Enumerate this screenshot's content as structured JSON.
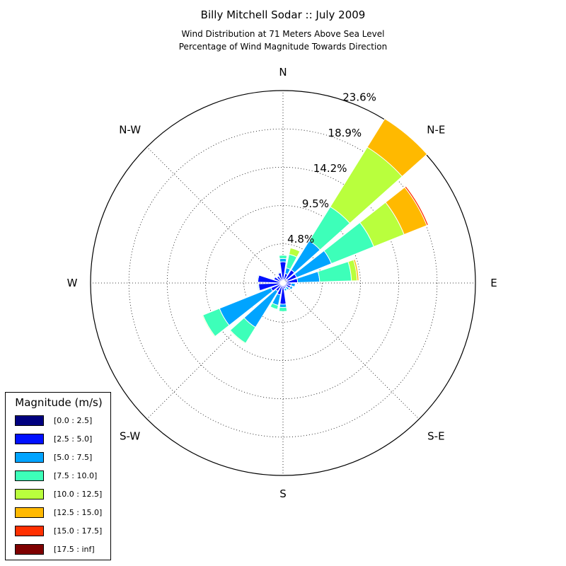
{
  "chart_data": {
    "type": "windrose",
    "title": "Billy Mitchell Sodar :: July 2009",
    "subtitle_lines": [
      "Wind Distribution at 71 Meters Above Sea Level",
      "Percentage of Wind Magnitude Towards Direction"
    ],
    "direction_labels": [
      "N",
      "N-E",
      "E",
      "S-E",
      "S",
      "S-W",
      "W",
      "N-W"
    ],
    "radial_tick_labels": [
      "4.8%",
      "9.5%",
      "14.2%",
      "18.9%",
      "23.6%"
    ],
    "radial_ticks": [
      4.8,
      9.5,
      14.2,
      18.9,
      23.6
    ],
    "radial_max": 23.6,
    "legend_title": "Magnitude (m/s)",
    "legend_placement": "lower-left",
    "bins": [
      {
        "label": "[0.0 : 2.5]",
        "color": "#00007f"
      },
      {
        "label": "[2.5 : 5.0]",
        "color": "#0010ff"
      },
      {
        "label": "[5.0 : 7.5]",
        "color": "#00a4ff"
      },
      {
        "label": "[7.5 : 10.0]",
        "color": "#3dffb9"
      },
      {
        "label": "[10.0 : 12.5]",
        "color": "#b9ff3d"
      },
      {
        "label": "[12.5 : 15.0]",
        "color": "#ffb900"
      },
      {
        "label": "[15.0 : 17.5]",
        "color": "#ff3000"
      },
      {
        "label": "[17.5 : inf]",
        "color": "#7f0000"
      }
    ],
    "sector_width_deg": 20,
    "sectors": [
      {
        "direction_deg": 0,
        "cumulative_pct": [
          0.4,
          2.6,
          3.0,
          3.4,
          3.4,
          3.4,
          3.4,
          3.4
        ]
      },
      {
        "direction_deg": 20,
        "cumulative_pct": [
          0.4,
          1.2,
          1.9,
          3.6,
          4.4,
          4.4,
          4.4,
          4.4
        ]
      },
      {
        "direction_deg": 40,
        "cumulative_pct": [
          0.6,
          1.9,
          6.1,
          11.0,
          19.6,
          23.7,
          23.7,
          23.7
        ]
      },
      {
        "direction_deg": 60,
        "cumulative_pct": [
          0.6,
          1.8,
          6.4,
          12.0,
          16.0,
          19.0,
          19.2,
          19.2
        ]
      },
      {
        "direction_deg": 80,
        "cumulative_pct": [
          0.4,
          1.8,
          4.5,
          8.4,
          9.1,
          9.3,
          9.3,
          9.3
        ]
      },
      {
        "direction_deg": 100,
        "cumulative_pct": [
          0.3,
          1.0,
          1.5,
          1.5,
          1.5,
          1.5,
          1.5,
          1.5
        ]
      },
      {
        "direction_deg": 120,
        "cumulative_pct": [
          0.3,
          1.0,
          1.3,
          1.3,
          1.3,
          1.3,
          1.3,
          1.3
        ]
      },
      {
        "direction_deg": 140,
        "cumulative_pct": [
          0.2,
          0.6,
          1.0,
          1.0,
          1.0,
          1.0,
          1.0,
          1.0
        ]
      },
      {
        "direction_deg": 160,
        "cumulative_pct": [
          0.2,
          0.7,
          1.0,
          1.0,
          1.0,
          1.0,
          1.0,
          1.0
        ]
      },
      {
        "direction_deg": 180,
        "cumulative_pct": [
          0.2,
          2.6,
          3.0,
          3.5,
          3.5,
          3.5,
          3.5,
          3.5
        ]
      },
      {
        "direction_deg": 200,
        "cumulative_pct": [
          0.2,
          1.5,
          2.8,
          3.3,
          3.3,
          3.3,
          3.3,
          3.3
        ]
      },
      {
        "direction_deg": 220,
        "cumulative_pct": [
          0.3,
          1.2,
          6.4,
          8.7,
          8.8,
          8.8,
          8.8,
          8.8
        ]
      },
      {
        "direction_deg": 240,
        "cumulative_pct": [
          0.3,
          1.6,
          8.4,
          10.6,
          10.7,
          10.7,
          10.7,
          10.7
        ]
      },
      {
        "direction_deg": 260,
        "cumulative_pct": [
          0.3,
          3.0,
          3.1,
          3.2,
          3.2,
          3.2,
          3.2,
          3.2
        ]
      },
      {
        "direction_deg": 280,
        "cumulative_pct": [
          0.2,
          3.1,
          3.2,
          3.2,
          3.2,
          3.2,
          3.2,
          3.2
        ]
      },
      {
        "direction_deg": 300,
        "cumulative_pct": [
          0.2,
          1.2,
          1.3,
          1.3,
          1.3,
          1.3,
          1.3,
          1.3
        ]
      },
      {
        "direction_deg": 320,
        "cumulative_pct": [
          0.2,
          1.0,
          1.1,
          1.1,
          1.1,
          1.1,
          1.1,
          1.1
        ]
      },
      {
        "direction_deg": 340,
        "cumulative_pct": [
          0.2,
          1.3,
          1.4,
          1.4,
          1.4,
          1.4,
          1.4,
          1.4
        ]
      }
    ]
  }
}
